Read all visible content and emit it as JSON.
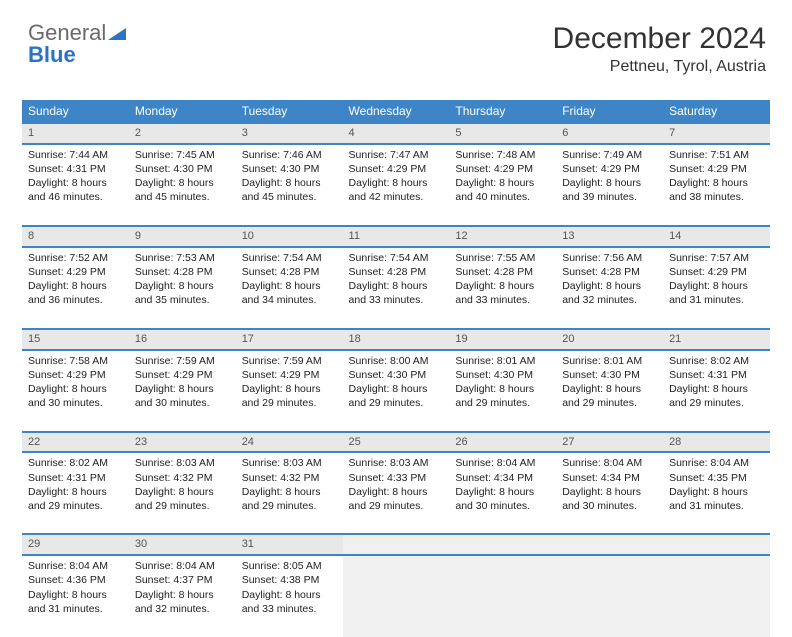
{
  "logo": {
    "part1": "General",
    "part2": "Blue"
  },
  "title": "December 2024",
  "location": "Pettneu, Tyrol, Austria",
  "header_bg": "#3d85c6",
  "header_fg": "#ffffff",
  "daynum_bg": "#e8e8e8",
  "rule_color": "#3d85c6",
  "text_color": "#222222",
  "font_family": "Arial, Helvetica, sans-serif",
  "daynum_fontsize": 11,
  "detail_fontsize": 10.5,
  "title_fontsize": 30,
  "location_fontsize": 16,
  "weekdays": [
    "Sunday",
    "Monday",
    "Tuesday",
    "Wednesday",
    "Thursday",
    "Friday",
    "Saturday"
  ],
  "weeks": [
    [
      {
        "n": "1",
        "sr": "Sunrise: 7:44 AM",
        "ss": "Sunset: 4:31 PM",
        "d1": "Daylight: 8 hours",
        "d2": "and 46 minutes."
      },
      {
        "n": "2",
        "sr": "Sunrise: 7:45 AM",
        "ss": "Sunset: 4:30 PM",
        "d1": "Daylight: 8 hours",
        "d2": "and 45 minutes."
      },
      {
        "n": "3",
        "sr": "Sunrise: 7:46 AM",
        "ss": "Sunset: 4:30 PM",
        "d1": "Daylight: 8 hours",
        "d2": "and 45 minutes."
      },
      {
        "n": "4",
        "sr": "Sunrise: 7:47 AM",
        "ss": "Sunset: 4:29 PM",
        "d1": "Daylight: 8 hours",
        "d2": "and 42 minutes."
      },
      {
        "n": "5",
        "sr": "Sunrise: 7:48 AM",
        "ss": "Sunset: 4:29 PM",
        "d1": "Daylight: 8 hours",
        "d2": "and 40 minutes."
      },
      {
        "n": "6",
        "sr": "Sunrise: 7:49 AM",
        "ss": "Sunset: 4:29 PM",
        "d1": "Daylight: 8 hours",
        "d2": "and 39 minutes."
      },
      {
        "n": "7",
        "sr": "Sunrise: 7:51 AM",
        "ss": "Sunset: 4:29 PM",
        "d1": "Daylight: 8 hours",
        "d2": "and 38 minutes."
      }
    ],
    [
      {
        "n": "8",
        "sr": "Sunrise: 7:52 AM",
        "ss": "Sunset: 4:29 PM",
        "d1": "Daylight: 8 hours",
        "d2": "and 36 minutes."
      },
      {
        "n": "9",
        "sr": "Sunrise: 7:53 AM",
        "ss": "Sunset: 4:28 PM",
        "d1": "Daylight: 8 hours",
        "d2": "and 35 minutes."
      },
      {
        "n": "10",
        "sr": "Sunrise: 7:54 AM",
        "ss": "Sunset: 4:28 PM",
        "d1": "Daylight: 8 hours",
        "d2": "and 34 minutes."
      },
      {
        "n": "11",
        "sr": "Sunrise: 7:54 AM",
        "ss": "Sunset: 4:28 PM",
        "d1": "Daylight: 8 hours",
        "d2": "and 33 minutes."
      },
      {
        "n": "12",
        "sr": "Sunrise: 7:55 AM",
        "ss": "Sunset: 4:28 PM",
        "d1": "Daylight: 8 hours",
        "d2": "and 33 minutes."
      },
      {
        "n": "13",
        "sr": "Sunrise: 7:56 AM",
        "ss": "Sunset: 4:28 PM",
        "d1": "Daylight: 8 hours",
        "d2": "and 32 minutes."
      },
      {
        "n": "14",
        "sr": "Sunrise: 7:57 AM",
        "ss": "Sunset: 4:29 PM",
        "d1": "Daylight: 8 hours",
        "d2": "and 31 minutes."
      }
    ],
    [
      {
        "n": "15",
        "sr": "Sunrise: 7:58 AM",
        "ss": "Sunset: 4:29 PM",
        "d1": "Daylight: 8 hours",
        "d2": "and 30 minutes."
      },
      {
        "n": "16",
        "sr": "Sunrise: 7:59 AM",
        "ss": "Sunset: 4:29 PM",
        "d1": "Daylight: 8 hours",
        "d2": "and 30 minutes."
      },
      {
        "n": "17",
        "sr": "Sunrise: 7:59 AM",
        "ss": "Sunset: 4:29 PM",
        "d1": "Daylight: 8 hours",
        "d2": "and 29 minutes."
      },
      {
        "n": "18",
        "sr": "Sunrise: 8:00 AM",
        "ss": "Sunset: 4:30 PM",
        "d1": "Daylight: 8 hours",
        "d2": "and 29 minutes."
      },
      {
        "n": "19",
        "sr": "Sunrise: 8:01 AM",
        "ss": "Sunset: 4:30 PM",
        "d1": "Daylight: 8 hours",
        "d2": "and 29 minutes."
      },
      {
        "n": "20",
        "sr": "Sunrise: 8:01 AM",
        "ss": "Sunset: 4:30 PM",
        "d1": "Daylight: 8 hours",
        "d2": "and 29 minutes."
      },
      {
        "n": "21",
        "sr": "Sunrise: 8:02 AM",
        "ss": "Sunset: 4:31 PM",
        "d1": "Daylight: 8 hours",
        "d2": "and 29 minutes."
      }
    ],
    [
      {
        "n": "22",
        "sr": "Sunrise: 8:02 AM",
        "ss": "Sunset: 4:31 PM",
        "d1": "Daylight: 8 hours",
        "d2": "and 29 minutes."
      },
      {
        "n": "23",
        "sr": "Sunrise: 8:03 AM",
        "ss": "Sunset: 4:32 PM",
        "d1": "Daylight: 8 hours",
        "d2": "and 29 minutes."
      },
      {
        "n": "24",
        "sr": "Sunrise: 8:03 AM",
        "ss": "Sunset: 4:32 PM",
        "d1": "Daylight: 8 hours",
        "d2": "and 29 minutes."
      },
      {
        "n": "25",
        "sr": "Sunrise: 8:03 AM",
        "ss": "Sunset: 4:33 PM",
        "d1": "Daylight: 8 hours",
        "d2": "and 29 minutes."
      },
      {
        "n": "26",
        "sr": "Sunrise: 8:04 AM",
        "ss": "Sunset: 4:34 PM",
        "d1": "Daylight: 8 hours",
        "d2": "and 30 minutes."
      },
      {
        "n": "27",
        "sr": "Sunrise: 8:04 AM",
        "ss": "Sunset: 4:34 PM",
        "d1": "Daylight: 8 hours",
        "d2": "and 30 minutes."
      },
      {
        "n": "28",
        "sr": "Sunrise: 8:04 AM",
        "ss": "Sunset: 4:35 PM",
        "d1": "Daylight: 8 hours",
        "d2": "and 31 minutes."
      }
    ],
    [
      {
        "n": "29",
        "sr": "Sunrise: 8:04 AM",
        "ss": "Sunset: 4:36 PM",
        "d1": "Daylight: 8 hours",
        "d2": "and 31 minutes."
      },
      {
        "n": "30",
        "sr": "Sunrise: 8:04 AM",
        "ss": "Sunset: 4:37 PM",
        "d1": "Daylight: 8 hours",
        "d2": "and 32 minutes."
      },
      {
        "n": "31",
        "sr": "Sunrise: 8:05 AM",
        "ss": "Sunset: 4:38 PM",
        "d1": "Daylight: 8 hours",
        "d2": "and 33 minutes."
      },
      null,
      null,
      null,
      null
    ]
  ]
}
